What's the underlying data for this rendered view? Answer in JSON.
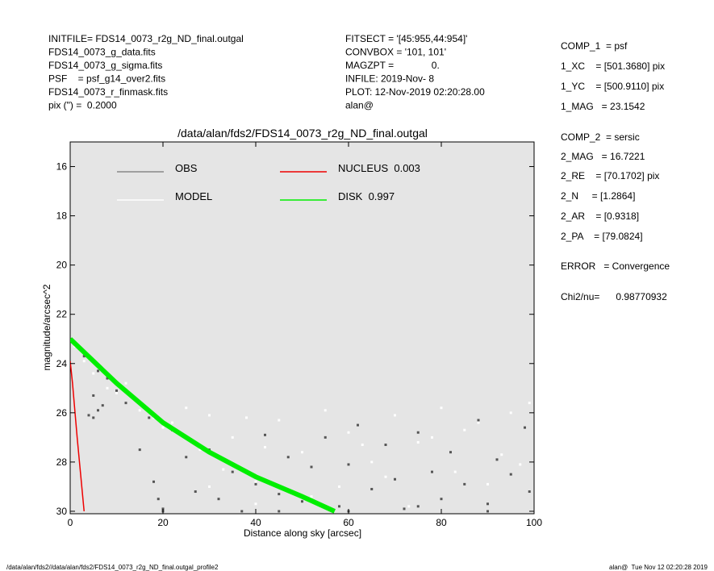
{
  "header": {
    "left": [
      "INITFILE= FDS14_0073_r2g_ND_final.outgal",
      "FDS14_0073_g_data.fits",
      "FDS14_0073_g_sigma.fits",
      "PSF    = psf_g14_over2.fits",
      "FDS14_0073_r_finmask.fits",
      "pix (\") =  0.2000"
    ],
    "middle": [
      "FITSECT = '[45:955,44:954]'",
      "CONVBOX = '101, 101'",
      "MAGZPT =              0.",
      "INFILE: 2019-Nov- 8",
      "PLOT: 12-Nov-2019 02:20:28.00",
      "alan@"
    ],
    "right": [
      "COMP_1  = psf",
      "1_XC    = [501.3680] pix",
      "1_YC    = [500.9110] pix",
      "1_MAG   = 23.1542",
      "COMP_2  = sersic",
      "2_MAG   = 16.7221",
      "2_RE    = [70.1702] pix",
      "2_N     = [1.2864]",
      "2_AR    = [0.9318]",
      "2_PA    = [79.0824]",
      "ERROR   = Convergence",
      "Chi2/nu=      0.98770932"
    ]
  },
  "footer": {
    "left": "/data/alan/fds2//data/alan/fds2/FDS14_0073_r2g_ND_final.outgal_profile2",
    "right": "alan@  Tue Nov 12 02:20:28 2019"
  },
  "chart_data": {
    "type": "scatter",
    "title": "/data/alan/fds2/FDS14_0073_r2g_ND_final.outgal",
    "x_label": "Distance along sky [arcsec]",
    "y_label": "magnitude/arcsec^2",
    "xlim": [
      0,
      100
    ],
    "ylim": [
      30.1,
      15
    ],
    "xticks": [
      0,
      20,
      40,
      60,
      80,
      100
    ],
    "yticks": [
      16,
      18,
      20,
      22,
      24,
      26,
      28,
      30
    ],
    "background": "#e5e5e5",
    "series": [
      {
        "name": "MODEL",
        "color": "#ffffff",
        "mode": "markers",
        "x": [
          1,
          3,
          5,
          8,
          10,
          12,
          15,
          18,
          20,
          22,
          25,
          28,
          30,
          33,
          35,
          38,
          40,
          42,
          45,
          48,
          50,
          55,
          60,
          65,
          70,
          75,
          80,
          85,
          90,
          95,
          99,
          52,
          58,
          63,
          68,
          73,
          78,
          83,
          88,
          93,
          97,
          30,
          40
        ],
        "values": [
          23.3,
          23.9,
          24.4,
          25,
          25.2,
          24.8,
          25.9,
          26.2,
          26.6,
          26.4,
          25.8,
          27.5,
          26.1,
          28.3,
          27,
          26.2,
          28.8,
          27.4,
          26.3,
          29.2,
          27.6,
          25.9,
          26.8,
          28,
          26.1,
          27.2,
          25.8,
          26.7,
          28.9,
          26,
          25.6,
          29.4,
          29,
          27.3,
          28.6,
          29.8,
          27,
          28.4,
          26.4,
          27.7,
          28.1,
          29,
          29.7
        ]
      },
      {
        "name": "OBS",
        "color": "#555555",
        "mode": "markers",
        "x": [
          2,
          3,
          4,
          5,
          6,
          7,
          8,
          10,
          12,
          14,
          15,
          17,
          18,
          20,
          22,
          25,
          27,
          30,
          32,
          35,
          37,
          40,
          42,
          45,
          47,
          50,
          52,
          55,
          58,
          60,
          62,
          65,
          68,
          70,
          72,
          75,
          78,
          80,
          82,
          85,
          88,
          90,
          92,
          95,
          98,
          99,
          5,
          6,
          19,
          20,
          45,
          60,
          75,
          90
        ],
        "values": [
          23.4,
          23.7,
          26.1,
          26.2,
          24.3,
          25.7,
          24.6,
          25.1,
          25.6,
          25.4,
          27.5,
          26.2,
          28.8,
          29.9,
          26.7,
          27.8,
          29.2,
          27.5,
          29.5,
          28.4,
          30,
          28.9,
          26.9,
          29.3,
          27.8,
          29.6,
          28.2,
          27,
          29.8,
          28.1,
          26.5,
          29.1,
          27.3,
          28.7,
          29.9,
          26.8,
          28.4,
          29.5,
          27.6,
          28.9,
          26.3,
          29.7,
          27.9,
          28.5,
          26.6,
          29.2,
          25.3,
          25.9,
          29.5,
          30,
          30,
          30,
          29.8,
          30
        ]
      },
      {
        "name": "DISK  0.997",
        "color": "#00ee00",
        "mode": "lines",
        "x": [
          0,
          10,
          20,
          30,
          40,
          50,
          57
        ],
        "values": [
          23,
          24.8,
          26.4,
          27.6,
          28.6,
          29.4,
          30
        ]
      },
      {
        "name": "NUCLEUS  0.003",
        "color": "#ee0000",
        "mode": "lines",
        "x": [
          0,
          0.5,
          1,
          1.5,
          2,
          2.5,
          3
        ],
        "values": [
          23.9,
          24.8,
          25.9,
          27,
          28,
          29,
          30
        ]
      }
    ]
  }
}
